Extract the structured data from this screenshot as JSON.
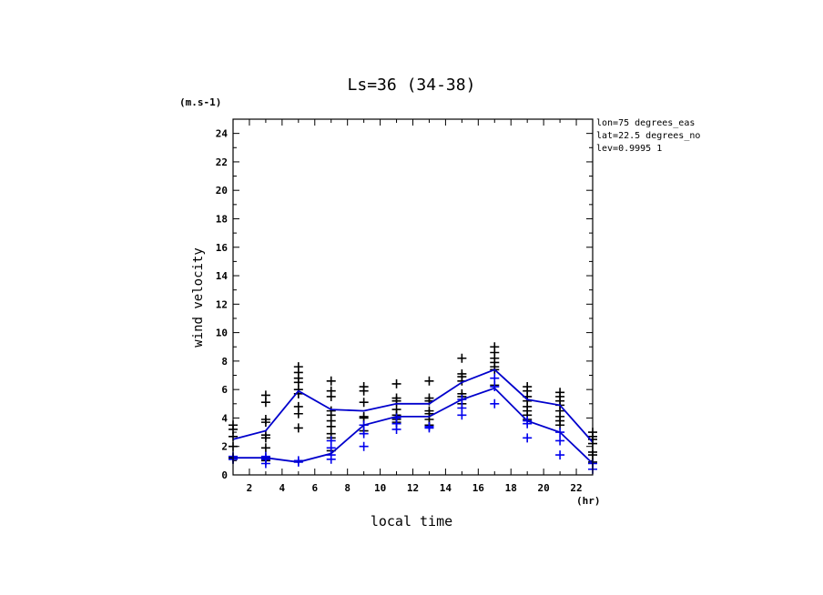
{
  "chart_data": {
    "type": "line",
    "title": "Ls=36 (34-38)",
    "xlabel": "local time",
    "xunit": "(hr)",
    "ylabel": "wind velocity",
    "yunit": "(m.s-1)",
    "xlim": [
      1,
      23
    ],
    "ylim": [
      0,
      25
    ],
    "xticks": [
      2,
      4,
      6,
      8,
      10,
      12,
      14,
      16,
      18,
      20,
      22
    ],
    "yticks": [
      0,
      2,
      4,
      6,
      8,
      10,
      12,
      14,
      16,
      18,
      20,
      22,
      24
    ],
    "grid": false,
    "annotations": [
      "lon=75 degrees_eas",
      "lat=22.5 degrees_no",
      "lev=0.9995 1"
    ],
    "series": [
      {
        "color": "#0000cc",
        "x": [
          1,
          3,
          5,
          7,
          9,
          11,
          13,
          15,
          17,
          19,
          21,
          23
        ],
        "values": [
          2.5,
          3.1,
          5.9,
          4.6,
          4.5,
          5.0,
          5.0,
          6.5,
          7.4,
          5.3,
          4.9,
          2.3
        ]
      },
      {
        "color": "#0000cc",
        "x": [
          1,
          3,
          5,
          7,
          9,
          11,
          13,
          15,
          17,
          19,
          21,
          23
        ],
        "values": [
          1.2,
          1.2,
          0.9,
          1.5,
          3.5,
          4.1,
          4.1,
          5.3,
          6.1,
          3.8,
          3.0,
          0.8
        ]
      }
    ],
    "scatter_black": [
      {
        "x": 1,
        "values": [
          3.5,
          3.2,
          2.7,
          2.0,
          1.2,
          1.1
        ]
      },
      {
        "x": 3,
        "values": [
          5.6,
          5.1,
          3.9,
          3.7,
          2.8,
          2.6,
          1.9,
          1.2,
          1.0
        ]
      },
      {
        "x": 5,
        "values": [
          7.6,
          7.2,
          6.8,
          6.5,
          6.0,
          5.7,
          4.8,
          4.3,
          3.3
        ]
      },
      {
        "x": 7,
        "values": [
          6.6,
          5.9,
          5.5,
          4.5,
          4.2,
          3.8,
          3.4,
          2.9,
          2.6,
          1.7
        ]
      },
      {
        "x": 9,
        "values": [
          6.2,
          5.9,
          5.1,
          4.1,
          4.0,
          3.5,
          3.1
        ]
      },
      {
        "x": 11,
        "values": [
          6.4,
          5.4,
          5.2,
          4.6,
          4.2,
          3.9,
          3.7
        ]
      },
      {
        "x": 13,
        "values": [
          6.6,
          5.4,
          5.2,
          4.5,
          4.3,
          3.9,
          3.5
        ]
      },
      {
        "x": 15,
        "values": [
          8.2,
          7.1,
          6.9,
          6.6,
          5.7,
          5.5,
          5.0
        ]
      },
      {
        "x": 17,
        "values": [
          9.0,
          8.6,
          8.2,
          7.9,
          7.6,
          7.4,
          6.3
        ]
      },
      {
        "x": 19,
        "values": [
          6.2,
          5.9,
          5.5,
          5.2,
          4.8,
          4.5,
          4.2,
          3.9
        ]
      },
      {
        "x": 21,
        "values": [
          5.8,
          5.5,
          5.2,
          4.9,
          4.5,
          4.1,
          3.8,
          3.5
        ]
      },
      {
        "x": 23,
        "values": [
          3.0,
          2.7,
          2.5,
          2.2,
          1.6,
          1.4,
          0.9
        ]
      }
    ],
    "scatter_blue": [
      {
        "x": 1,
        "values": [
          1.3,
          1.1
        ]
      },
      {
        "x": 3,
        "values": [
          1.3,
          1.1,
          0.8
        ]
      },
      {
        "x": 5,
        "values": [
          1.0,
          0.9
        ]
      },
      {
        "x": 7,
        "values": [
          2.4,
          1.9,
          1.4,
          1.1
        ]
      },
      {
        "x": 9,
        "values": [
          3.5,
          2.9,
          2.0
        ]
      },
      {
        "x": 11,
        "values": [
          4.0,
          3.6,
          3.2
        ]
      },
      {
        "x": 13,
        "values": [
          3.4,
          3.3
        ]
      },
      {
        "x": 15,
        "values": [
          5.3,
          4.7,
          4.2
        ]
      },
      {
        "x": 17,
        "values": [
          6.8,
          6.2,
          5.0
        ]
      },
      {
        "x": 19,
        "values": [
          3.8,
          3.6,
          2.6
        ]
      },
      {
        "x": 21,
        "values": [
          3.0,
          2.4,
          1.4
        ]
      },
      {
        "x": 23,
        "values": [
          0.8,
          0.4
        ]
      }
    ]
  }
}
